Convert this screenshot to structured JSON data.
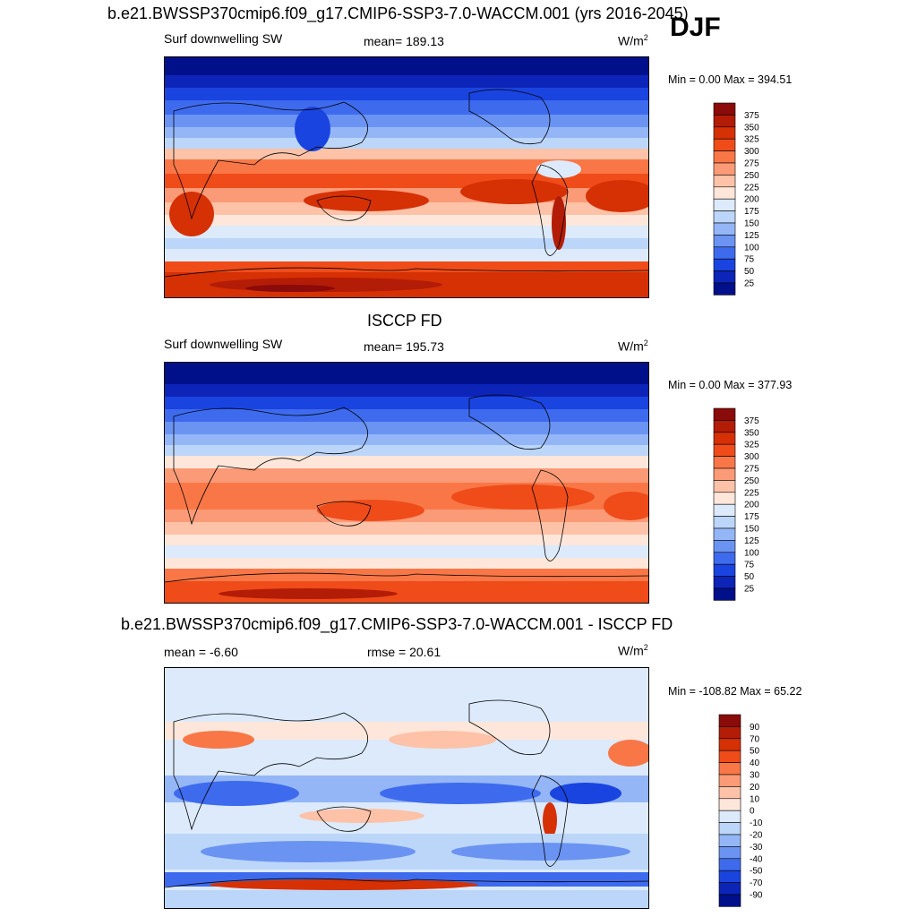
{
  "season": "DJF",
  "chart_data": [
    {
      "type": "heatmap",
      "title": "b.e21.BWSSP370cmip6.f09_g17.CMIP6-SSP3-7.0-WACCM.001 (yrs 2016-2045)",
      "left_label": "Surf downwelling SW",
      "center_label": "mean= 189.13",
      "units": "W/m",
      "units_sup": "2",
      "minmax": "Min =   0.00 Max = 394.51",
      "min": 0.0,
      "max": 394.51,
      "mean": 189.13,
      "colorbar_levels": [
        "375",
        "350",
        "325",
        "300",
        "275",
        "250",
        "225",
        "200",
        "175",
        "150",
        "125",
        "100",
        "75",
        "50",
        "25"
      ]
    },
    {
      "type": "heatmap",
      "title": "ISCCP FD",
      "left_label": "Surf downwelling SW",
      "center_label": "mean= 195.73",
      "units": "W/m",
      "units_sup": "2",
      "minmax": "Min =   0.00 Max = 377.93",
      "min": 0.0,
      "max": 377.93,
      "mean": 195.73,
      "colorbar_levels": [
        "375",
        "350",
        "325",
        "300",
        "275",
        "250",
        "225",
        "200",
        "175",
        "150",
        "125",
        "100",
        "75",
        "50",
        "25"
      ]
    },
    {
      "type": "heatmap",
      "title": "b.e21.BWSSP370cmip6.f09_g17.CMIP6-SSP3-7.0-WACCM.001 - ISCCP FD",
      "left_label": "mean =  -6.60",
      "center_label": "rmse =  20.61",
      "units": "W/m",
      "units_sup": "2",
      "minmax": "Min = -108.82 Max =  65.22",
      "min": -108.82,
      "max": 65.22,
      "mean": -6.6,
      "rmse": 20.61,
      "colorbar_levels": [
        "90",
        "70",
        "50",
        "40",
        "30",
        "20",
        "10",
        "0",
        "-10",
        "-20",
        "-30",
        "-40",
        "-50",
        "-70",
        "-90"
      ]
    }
  ],
  "colors": {
    "abs_scale": [
      "#8b0a0a",
      "#b31c06",
      "#d63005",
      "#ef4c1a",
      "#f97747",
      "#fb9a76",
      "#fdc2a8",
      "#fee7da",
      "#dceafb",
      "#bcd6fa",
      "#94b6f7",
      "#6a93f2",
      "#3e6bee",
      "#1a44e0",
      "#0c24b8",
      "#00108a"
    ],
    "diff_scale": [
      "#8b0a0a",
      "#b31c06",
      "#d63005",
      "#ef4c1a",
      "#f97747",
      "#fb9a76",
      "#fdc2a8",
      "#fee7da",
      "#dceafb",
      "#bcd6fa",
      "#94b6f7",
      "#6a93f2",
      "#3e6bee",
      "#1a44e0",
      "#0c24b8",
      "#00108a"
    ]
  }
}
